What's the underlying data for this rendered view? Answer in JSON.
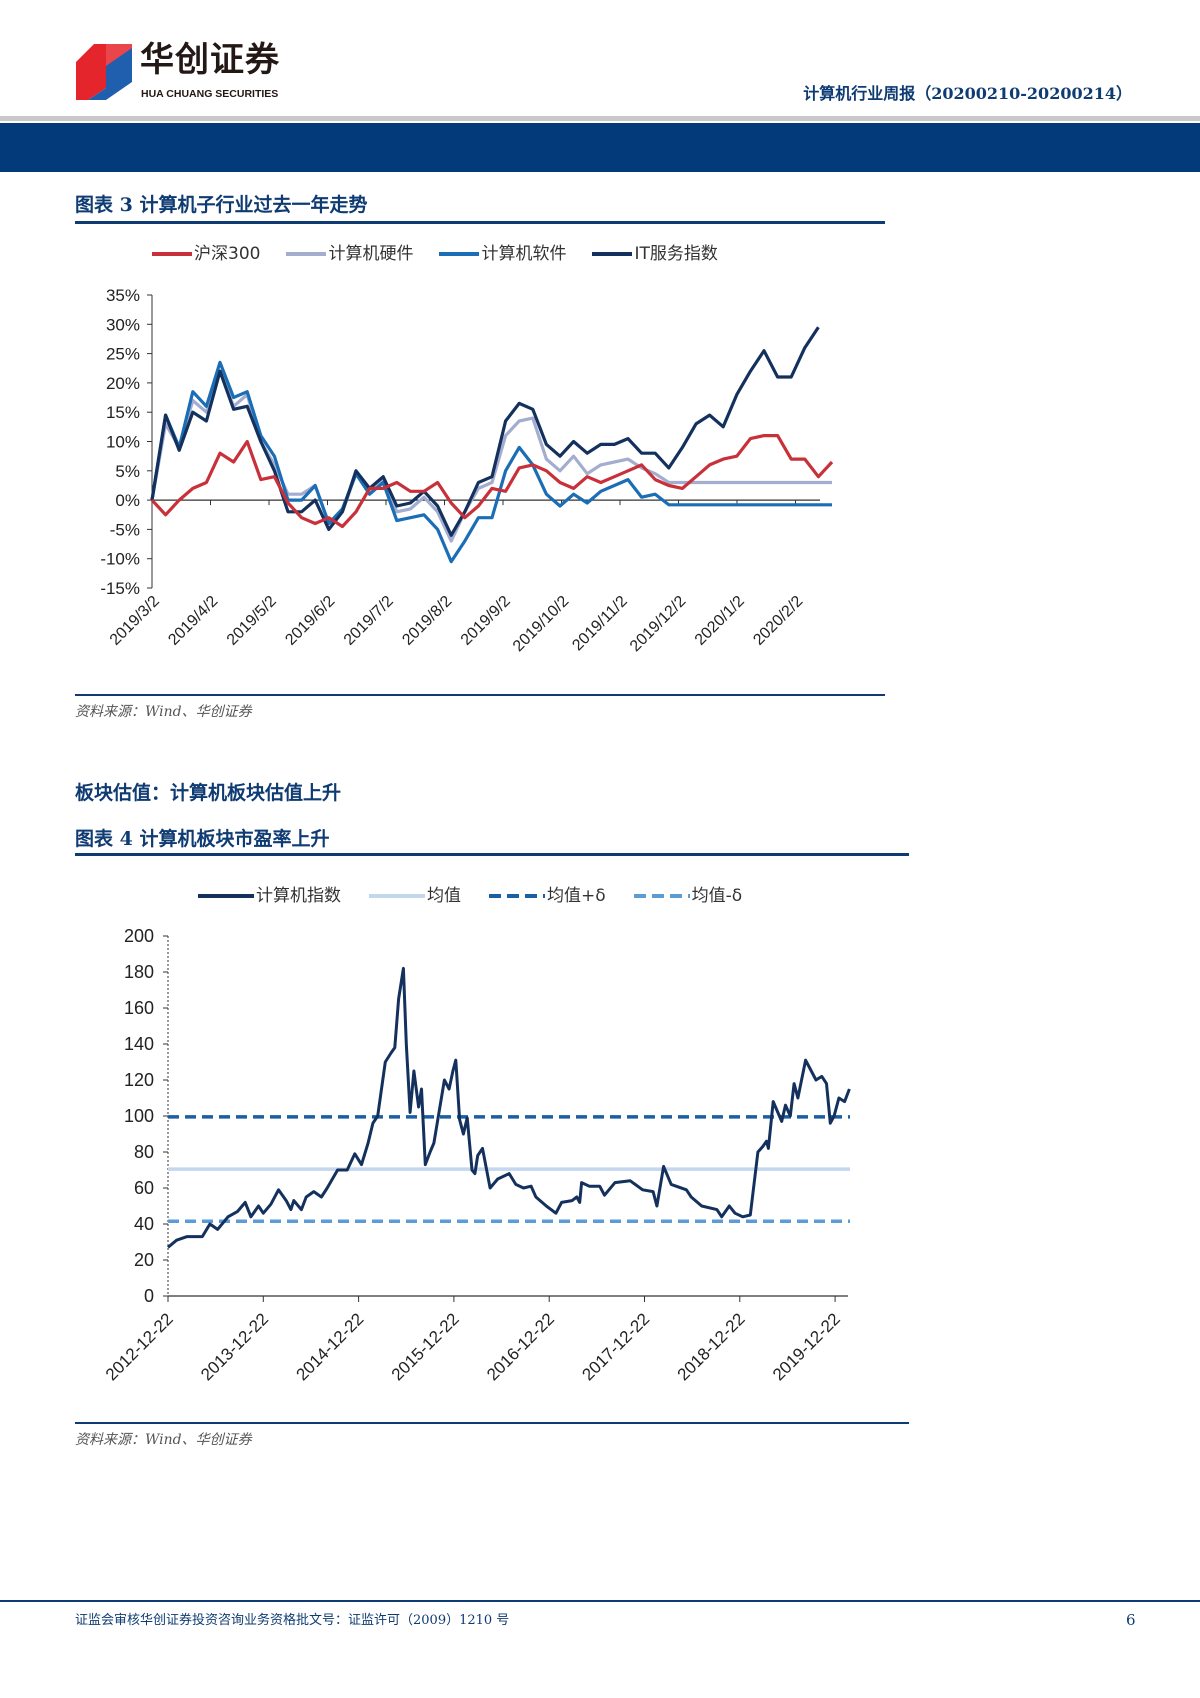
{
  "header": {
    "logo_cn": "华创证券",
    "logo_en": "HUA CHUANG SECURITIES",
    "report_title": "计算机行业周报（20200210-20200214）"
  },
  "figure3": {
    "title": "图表 3   计算机子行业过去一年走势",
    "source": "资料来源：Wind、华创证券"
  },
  "section_heading": "板块估值：计算机板块估值上升",
  "figure4": {
    "title": "图表 4   计算机板块市盈率上升",
    "source": "资料来源：Wind、华创证券"
  },
  "footer": {
    "license": "证监会审核华创证券投资咨询业务资格批文号：证监许可（2009）1210 号",
    "page_number": "6"
  },
  "chart_data": [
    {
      "type": "line",
      "title": "计算机子行业过去一年走势",
      "ylim": [
        -15,
        35
      ],
      "yticks": [
        "35%",
        "30%",
        "25%",
        "20%",
        "15%",
        "10%",
        "5%",
        "0%",
        "-5%",
        "-10%",
        "-15%"
      ],
      "ytick_values": [
        35,
        30,
        25,
        20,
        15,
        10,
        5,
        0,
        -5,
        -10,
        -15
      ],
      "xticks": [
        "2019/3/2",
        "2019/4/2",
        "2019/5/2",
        "2019/6/2",
        "2019/7/2",
        "2019/8/2",
        "2019/9/2",
        "2019/10/2",
        "2019/11/2",
        "2019/12/2",
        "2020/1/2",
        "2020/2/2"
      ],
      "x_unit": "weeks since 2019/3/2",
      "legend_position": "top",
      "series": [
        {
          "name": "沪深300",
          "color": "#c8313a",
          "values": [
            0,
            -2.5,
            0,
            2,
            3,
            8,
            6.5,
            10,
            3.5,
            4,
            -0.5,
            -3,
            -4,
            -3,
            -4.5,
            -2,
            2,
            2,
            3,
            1.5,
            1.5,
            3,
            -0.5,
            -3,
            -1,
            2,
            1.5,
            5.5,
            6,
            5,
            3,
            2,
            4,
            3,
            4,
            5,
            6,
            3.5,
            2.5,
            2,
            4,
            6,
            7,
            7.5,
            10.5,
            11,
            11,
            7,
            7,
            4,
            6.5
          ]
        },
        {
          "name": "计算机硬件",
          "color": "#a3add0",
          "values": [
            0,
            13,
            9,
            17,
            15,
            22,
            16,
            18,
            10,
            6,
            1,
            1,
            2.5,
            -4,
            -2,
            4.5,
            1.5,
            3.5,
            -2,
            -1.5,
            0.5,
            -2,
            -7,
            -2,
            2,
            3,
            11,
            13.5,
            14,
            7,
            5,
            7.5,
            4.5,
            6,
            6.5,
            7,
            5.5,
            4.5,
            3,
            3,
            3,
            3,
            3,
            3,
            3,
            3,
            3,
            3,
            3,
            3,
            3
          ]
        },
        {
          "name": "计算机软件",
          "color": "#1b6db5",
          "values": [
            0,
            14.5,
            9,
            18.5,
            16,
            23.5,
            17.5,
            18.5,
            11,
            7.5,
            0,
            0,
            2.5,
            -4,
            -1.5,
            4.5,
            1,
            3,
            -3.5,
            -3,
            -2.5,
            -5,
            -10.5,
            -7,
            -3,
            -3,
            5,
            9,
            6,
            1,
            -1,
            1,
            -0.5,
            1.5,
            2.5,
            3.5,
            0.5,
            1,
            -0.8,
            -0.8,
            -0.8,
            -0.8,
            -0.8,
            -0.8,
            -0.8,
            -0.8,
            -0.8,
            -0.8,
            -0.8,
            -0.8,
            -0.8
          ]
        },
        {
          "name": "IT服务指数",
          "color": "#14315e",
          "values": [
            0,
            14.5,
            8.5,
            15,
            13.5,
            22,
            15.5,
            16,
            10,
            5,
            -2,
            -2,
            0,
            -5,
            -2,
            5,
            2,
            4,
            -1,
            -0.5,
            1.5,
            -1,
            -6,
            -2,
            3,
            4,
            13.5,
            16.5,
            15.5,
            9.5,
            7.5,
            10,
            8,
            9.5,
            9.5,
            10.5,
            8,
            8,
            5.5,
            9,
            13,
            14.5,
            12.5,
            18,
            22,
            25.5,
            21,
            21,
            26,
            29.5
          ]
        }
      ]
    },
    {
      "type": "line",
      "title": "计算机板块市盈率上升",
      "ylim": [
        0,
        200
      ],
      "yticks": [
        "200",
        "180",
        "160",
        "140",
        "120",
        "100",
        "80",
        "60",
        "40",
        "20",
        "0"
      ],
      "ytick_values": [
        200,
        180,
        160,
        140,
        120,
        100,
        80,
        60,
        40,
        20,
        0
      ],
      "xticks": [
        "2012-12-22",
        "2013-12-22",
        "2014-12-22",
        "2015-12-22",
        "2016-12-22",
        "2017-12-22",
        "2018-12-22",
        "2019-12-22"
      ],
      "x_unit": "years since 2012-12-22",
      "legend_position": "top",
      "series": [
        {
          "name": "计算机指数",
          "color": "#14315e",
          "style": "solid",
          "points": [
            [
              0,
              27
            ],
            [
              0.09,
              31
            ],
            [
              0.2,
              33
            ],
            [
              0.36,
              33
            ],
            [
              0.44,
              40
            ],
            [
              0.52,
              37
            ],
            [
              0.63,
              44
            ],
            [
              0.73,
              47
            ],
            [
              0.81,
              52
            ],
            [
              0.87,
              44
            ],
            [
              0.95,
              50
            ],
            [
              1.0,
              46
            ],
            [
              1.08,
              51
            ],
            [
              1.16,
              59
            ],
            [
              1.24,
              53
            ],
            [
              1.29,
              48
            ],
            [
              1.32,
              53
            ],
            [
              1.4,
              48
            ],
            [
              1.45,
              55
            ],
            [
              1.53,
              58
            ],
            [
              1.61,
              55
            ],
            [
              1.67,
              60
            ],
            [
              1.78,
              70
            ],
            [
              1.88,
              70
            ],
            [
              1.96,
              79
            ],
            [
              2.03,
              73
            ],
            [
              2.1,
              85
            ],
            [
              2.15,
              96
            ],
            [
              2.2,
              100
            ],
            [
              2.28,
              130
            ],
            [
              2.34,
              135
            ],
            [
              2.38,
              138
            ],
            [
              2.42,
              165
            ],
            [
              2.47,
              182
            ],
            [
              2.5,
              140
            ],
            [
              2.54,
              102
            ],
            [
              2.58,
              125
            ],
            [
              2.63,
              105
            ],
            [
              2.66,
              115
            ],
            [
              2.7,
              73
            ],
            [
              2.75,
              80
            ],
            [
              2.79,
              85
            ],
            [
              2.9,
              120
            ],
            [
              2.95,
              115
            ],
            [
              2.99,
              125
            ],
            [
              3.02,
              131
            ],
            [
              3.06,
              98
            ],
            [
              3.1,
              90
            ],
            [
              3.14,
              99
            ],
            [
              3.19,
              70
            ],
            [
              3.22,
              68
            ],
            [
              3.25,
              78
            ],
            [
              3.3,
              82
            ],
            [
              3.38,
              60
            ],
            [
              3.46,
              65
            ],
            [
              3.58,
              68
            ],
            [
              3.65,
              62
            ],
            [
              3.73,
              60
            ],
            [
              3.81,
              61
            ],
            [
              3.86,
              55
            ],
            [
              3.97,
              50
            ],
            [
              4.07,
              46
            ],
            [
              4.13,
              52
            ],
            [
              4.24,
              53
            ],
            [
              4.29,
              55
            ],
            [
              4.32,
              52
            ],
            [
              4.34,
              63
            ],
            [
              4.42,
              61
            ],
            [
              4.53,
              61
            ],
            [
              4.58,
              56
            ],
            [
              4.69,
              63
            ],
            [
              4.85,
              64
            ],
            [
              4.98,
              59
            ],
            [
              5.09,
              58
            ],
            [
              5.13,
              50
            ],
            [
              5.2,
              72
            ],
            [
              5.28,
              62
            ],
            [
              5.44,
              59
            ],
            [
              5.49,
              55
            ],
            [
              5.6,
              50
            ],
            [
              5.76,
              48
            ],
            [
              5.81,
              44
            ],
            [
              5.89,
              50
            ],
            [
              5.95,
              46
            ],
            [
              6.03,
              44
            ],
            [
              6.11,
              45
            ],
            [
              6.19,
              80
            ],
            [
              6.24,
              83
            ],
            [
              6.28,
              86
            ],
            [
              6.3,
              82
            ],
            [
              6.35,
              108
            ],
            [
              6.44,
              97
            ],
            [
              6.48,
              106
            ],
            [
              6.53,
              100
            ],
            [
              6.57,
              118
            ],
            [
              6.61,
              110
            ],
            [
              6.69,
              131
            ],
            [
              6.75,
              125
            ],
            [
              6.8,
              120
            ],
            [
              6.86,
              122
            ],
            [
              6.91,
              118
            ],
            [
              6.95,
              96
            ],
            [
              6.99,
              100
            ],
            [
              7.04,
              110
            ],
            [
              7.1,
              108
            ],
            [
              7.15,
              115
            ]
          ]
        },
        {
          "name": "均值",
          "color": "#c5d7ee",
          "style": "solid",
          "value": 70.5
        },
        {
          "name": "均值+δ",
          "color": "#1b5fa3",
          "style": "dashed",
          "value": 99.5
        },
        {
          "name": "均值-δ",
          "color": "#5c9bd6",
          "style": "dashed",
          "value": 41.5
        }
      ]
    }
  ]
}
